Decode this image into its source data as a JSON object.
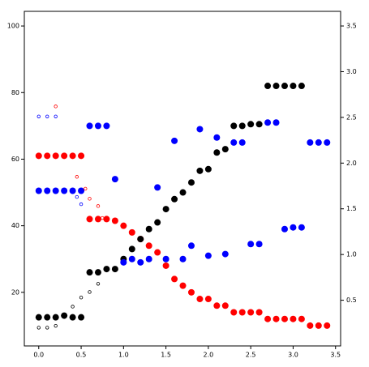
{
  "chart_data": {
    "type": "scatter",
    "xlim": [
      -0.17,
      3.56
    ],
    "xticks": [
      {
        "value": 0,
        "label": "0.0"
      },
      0.5,
      {
        "value": 1,
        "label": "1.0"
      },
      1.5,
      {
        "value": 2,
        "label": "2.0"
      },
      2.5,
      {
        "value": 3,
        "label": "3.0"
      },
      3.5
    ],
    "ylim": [
      3.9,
      104.4
    ],
    "yticks": [
      20,
      40,
      60,
      80,
      100
    ],
    "y2lim": [
      0,
      3.66
    ],
    "y2ticks": [
      0.5,
      {
        "value": 1,
        "label": "1.0"
      },
      1.5,
      {
        "value": 2,
        "label": "2.0"
      },
      2.5,
      {
        "value": 3,
        "label": "3.0"
      },
      3.5
    ],
    "series": [
      {
        "color": "#ff0000",
        "filled": true,
        "x": [
          0,
          0.1,
          0.2,
          0.3,
          0.4,
          0.5,
          0.6,
          0.7,
          0.8,
          0.9,
          1.0,
          1.1,
          1.2,
          1.3,
          1.4,
          1.5,
          1.6,
          1.7,
          1.8,
          1.9,
          2.0,
          2.1,
          2.2,
          2.3,
          2.4,
          2.5,
          2.6,
          2.7,
          2.8,
          2.9,
          3.0,
          3.1,
          3.2,
          3.3,
          3.4
        ],
        "values": [
          61,
          61,
          61,
          61,
          61,
          61,
          42,
          42,
          42,
          41.5,
          40,
          38,
          36,
          34,
          32,
          28,
          24,
          22,
          20,
          18,
          18,
          16,
          16,
          14,
          14,
          14,
          14,
          12,
          12,
          12,
          12,
          12,
          10,
          10,
          10
        ]
      },
      {
        "color": "#000000",
        "filled": true,
        "x": [
          0,
          0.1,
          0.2,
          0.3,
          0.4,
          0.5,
          0.6,
          0.7,
          0.8,
          0.9,
          1.0,
          1.1,
          1.2,
          1.3,
          1.4,
          1.5,
          1.6,
          1.7,
          1.8,
          1.9,
          2.0,
          2.1,
          2.2,
          2.3,
          2.4,
          2.5,
          2.6,
          2.7,
          2.8,
          2.9,
          3.0,
          3.1
        ],
        "values": [
          12.5,
          12.5,
          12.5,
          13,
          12.5,
          12.5,
          26,
          26,
          27,
          27,
          30,
          33,
          36,
          39,
          41,
          45,
          48,
          50,
          53,
          56.5,
          57,
          62,
          63,
          70,
          70,
          70.5,
          70.5,
          82,
          82,
          82,
          82,
          82
        ]
      },
      {
        "color": "#0000ff",
        "filled": true,
        "x": [
          0,
          0.1,
          0.2,
          0.3,
          0.4,
          0.5,
          0.6,
          0.7,
          0.8,
          0.9,
          1.0,
          1.1,
          1.2,
          1.3,
          1.4,
          1.5,
          1.6,
          1.7,
          1.8,
          1.9,
          2.0,
          2.1,
          2.2,
          2.3,
          2.4,
          2.5,
          2.6,
          2.7,
          2.8,
          2.9,
          3.0,
          3.1,
          3.2,
          3.3,
          3.4
        ],
        "values": [
          50.5,
          50.5,
          50.5,
          50.5,
          50.5,
          50.5,
          70,
          70,
          70,
          54,
          29,
          30,
          29,
          30,
          51.5,
          30,
          65.5,
          30,
          34,
          69,
          31,
          66.5,
          31.5,
          65,
          65,
          34.5,
          34.5,
          71,
          71,
          39,
          39.5,
          39.5,
          65,
          65,
          65
        ]
      },
      {
        "color": "#ff0000",
        "filled": false,
        "axis": "y2",
        "x": [
          0.2,
          0.45,
          0.55,
          0.6,
          0.7,
          0.75
        ],
        "values": [
          2.62,
          1.85,
          1.72,
          1.61,
          1.53,
          1.4
        ]
      },
      {
        "color": "#0000ff",
        "filled": false,
        "axis": "y2",
        "x": [
          0,
          0.1,
          0.2,
          0.45,
          0.5
        ],
        "values": [
          2.51,
          2.51,
          2.51,
          1.63,
          1.55
        ]
      },
      {
        "color": "#000000",
        "filled": false,
        "axis": "y2",
        "x": [
          0,
          0.1,
          0.2,
          0.4,
          0.5,
          0.6,
          0.7
        ],
        "values": [
          0.2,
          0.2,
          0.22,
          0.43,
          0.53,
          0.59,
          0.68
        ]
      }
    ]
  }
}
